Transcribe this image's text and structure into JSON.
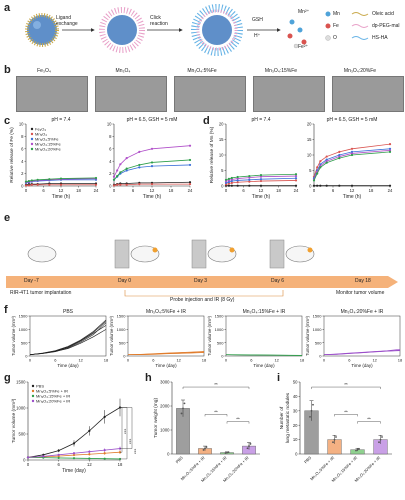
{
  "panels": {
    "a": {
      "letter": "a",
      "step1": "Ligand\nexchange",
      "step1_l1": "Ligand",
      "step1_l2": "exchange",
      "step2_l1": "Click",
      "step2_l2": "reaction",
      "step3_top": "GSH",
      "step3_bot": "H⁺",
      "ion_mn": "Mn²⁺",
      "ion_fe": "Fe²⁺",
      "legend": [
        {
          "symbol": "Mn",
          "desc": "Oleic acid"
        },
        {
          "symbol": "Fe",
          "desc": "dp-PEG-mal"
        },
        {
          "symbol": "O",
          "desc": "HS-HA"
        }
      ],
      "colors": {
        "mn": "#4fa3d9",
        "fe": "#d9534f",
        "o": "#dddddd",
        "oleic": "#c9a94a",
        "peg": "#e8a0c8",
        "ha": "#66b3e6"
      }
    },
    "b": {
      "letter": "b",
      "labels": [
        "Fe₃O₄",
        "Mn₃O₄",
        "Mn₃O₄:5%Fe",
        "Mn₃O₄:15%Fe",
        "Mn₃O₄:20%Fe"
      ]
    },
    "c": {
      "letter": "c",
      "left_title": "pH = 7.4",
      "right_title": "pH = 6.5, GSH = 5 mM",
      "ylabel": "Relative release of Fe (%)",
      "xlabel": "Time (h)",
      "legend": [
        "Fe₃O₄",
        "Mn₃O₄",
        "Mn₃O₄:5%Fe",
        "Mn₃O₄:15%Fe",
        "Mn₃O₄:20%Fe"
      ]
    },
    "d": {
      "letter": "d",
      "left_title": "pH = 7.4",
      "right_title": "pH = 6.5, GSH = 5 mM",
      "ylabel": "Relative release of Mn (%)",
      "xlabel": "Time (h)"
    },
    "e": {
      "letter": "e",
      "days": [
        "Day -7",
        "Day 0",
        "Day 3",
        "Day 6",
        "Day 18"
      ],
      "event1": "RIR-4T1 tumor implantation",
      "event2": "Probe injection and IR (8 Gy)",
      "event3": "Monitor tumor volume"
    },
    "f": {
      "letter": "f",
      "titles": [
        "PBS",
        "Mn₃O₄:5%Fe + IR",
        "Mn₃O₄:15%Fe + IR",
        "Mn₃O₄:20%Fe + IR"
      ],
      "ylabel": "Tumor volume (mm³)",
      "xlabel": "Time (day)"
    },
    "g": {
      "letter": "g",
      "ylabel": "Tumor volume (mm³)",
      "xlabel": "Time (day)",
      "legend": [
        "PBS",
        "Mn₃O₄:5%Fe + IR",
        "Mn₃O₄:15%Fe + IR",
        "Mn₃O₄:20%Fe + IR"
      ],
      "sig": "***"
    },
    "h": {
      "letter": "h",
      "ylabel": "Tumor weight (mg)",
      "sig": "**"
    },
    "i": {
      "letter": "i",
      "ylabel_l1": "Number of",
      "ylabel_l2": "lung metastatic nodules",
      "sig": "**"
    }
  },
  "chart_data": [
    {
      "id": "c-left",
      "type": "line",
      "title": "pH = 7.4",
      "xlabel": "Time (h)",
      "ylabel": "Relative release of Fe (%)",
      "x": [
        0,
        1,
        2,
        4,
        8,
        12,
        24
      ],
      "xlim": [
        0,
        24
      ],
      "ylim": [
        0,
        10
      ],
      "xticks": [
        0,
        6,
        12,
        18,
        24
      ],
      "yticks": [
        0,
        2,
        4,
        6,
        8,
        10
      ],
      "series": [
        {
          "name": "Fe₃O₄",
          "color": "#222222",
          "values": [
            0.2,
            0.3,
            0.3,
            0.3,
            0.4,
            0.4,
            0.4
          ]
        },
        {
          "name": "Mn₃O₄",
          "color": "#d9534f",
          "values": [
            0.1,
            0.1,
            0.2,
            0.2,
            0.2,
            0.2,
            0.2
          ]
        },
        {
          "name": "Mn₃O₄:5%Fe",
          "color": "#3a6fd8",
          "values": [
            0.5,
            0.6,
            0.7,
            0.8,
            0.9,
            1.0,
            1.0
          ]
        },
        {
          "name": "Mn₃O₄:15%Fe",
          "color": "#b04fc9",
          "values": [
            0.6,
            0.7,
            0.8,
            0.9,
            1.0,
            1.1,
            1.2
          ]
        },
        {
          "name": "Mn₃O₄:20%Fe",
          "color": "#2e9e4a",
          "values": [
            0.7,
            0.8,
            0.9,
            1.0,
            1.1,
            1.2,
            1.3
          ]
        }
      ]
    },
    {
      "id": "c-right",
      "type": "line",
      "title": "pH = 6.5, GSH = 5 mM",
      "xlabel": "Time (h)",
      "ylabel": "",
      "x": [
        0,
        1,
        2,
        4,
        8,
        12,
        24
      ],
      "xlim": [
        0,
        24
      ],
      "ylim": [
        0,
        10
      ],
      "xticks": [
        0,
        6,
        12,
        18,
        24
      ],
      "yticks": [
        0,
        2,
        4,
        6,
        8,
        10
      ],
      "series": [
        {
          "name": "Fe₃O₄",
          "color": "#222222",
          "values": [
            0.2,
            0.3,
            0.4,
            0.4,
            0.5,
            0.5,
            0.6
          ]
        },
        {
          "name": "Mn₃O₄",
          "color": "#d9534f",
          "values": [
            0.1,
            0.2,
            0.2,
            0.2,
            0.3,
            0.3,
            0.3
          ]
        },
        {
          "name": "Mn₃O₄:5%Fe",
          "color": "#3a6fd8",
          "values": [
            1.0,
            1.5,
            2.0,
            2.5,
            3.0,
            3.2,
            3.4
          ]
        },
        {
          "name": "Mn₃O₄:15%Fe",
          "color": "#b04fc9",
          "values": [
            1.5,
            2.5,
            3.5,
            4.5,
            5.5,
            6.0,
            6.5
          ]
        },
        {
          "name": "Mn₃O₄:20%Fe",
          "color": "#2e9e4a",
          "values": [
            1.0,
            1.6,
            2.2,
            2.8,
            3.4,
            3.8,
            4.2
          ]
        }
      ]
    },
    {
      "id": "d-left",
      "type": "line",
      "title": "pH = 7.4",
      "xlabel": "Time (h)",
      "ylabel": "Relative release of Mn (%)",
      "x": [
        0,
        1,
        2,
        4,
        8,
        12,
        24
      ],
      "xlim": [
        0,
        24
      ],
      "ylim": [
        0,
        20
      ],
      "xticks": [
        0,
        6,
        12,
        18,
        24
      ],
      "yticks": [
        0,
        5,
        10,
        15,
        20
      ],
      "series": [
        {
          "name": "Fe₃O₄",
          "color": "#222222",
          "values": [
            0.1,
            0.1,
            0.1,
            0.1,
            0.1,
            0.1,
            0.1
          ]
        },
        {
          "name": "Mn₃O₄",
          "color": "#d9534f",
          "values": [
            0.5,
            0.8,
            1.0,
            1.2,
            1.4,
            1.6,
            1.8
          ]
        },
        {
          "name": "Mn₃O₄:5%Fe",
          "color": "#3a6fd8",
          "values": [
            1.0,
            1.3,
            1.6,
            1.8,
            2.0,
            2.2,
            2.5
          ]
        },
        {
          "name": "Mn₃O₄:15%Fe",
          "color": "#b04fc9",
          "values": [
            1.5,
            1.8,
            2.1,
            2.4,
            2.7,
            3.0,
            3.2
          ]
        },
        {
          "name": "Mn₃O₄:20%Fe",
          "color": "#2e9e4a",
          "values": [
            2.0,
            2.3,
            2.6,
            2.9,
            3.2,
            3.5,
            3.8
          ]
        }
      ]
    },
    {
      "id": "d-right",
      "type": "line",
      "title": "pH = 6.5, GSH = 5 mM",
      "xlabel": "Time (h)",
      "ylabel": "",
      "x": [
        0,
        1,
        2,
        4,
        8,
        12,
        24
      ],
      "xlim": [
        0,
        24
      ],
      "ylim": [
        0,
        20
      ],
      "xticks": [
        0,
        6,
        12,
        18,
        24
      ],
      "yticks": [
        0,
        5,
        10,
        15,
        20
      ],
      "series": [
        {
          "name": "Fe₃O₄",
          "color": "#222222",
          "values": [
            0.1,
            0.1,
            0.1,
            0.1,
            0.1,
            0.1,
            0.1
          ]
        },
        {
          "name": "Mn₃O₄",
          "color": "#d9534f",
          "values": [
            3.0,
            6.0,
            8.0,
            9.5,
            11.0,
            12.0,
            13.5
          ]
        },
        {
          "name": "Mn₃O₄:5%Fe",
          "color": "#3a6fd8",
          "values": [
            2.5,
            5.0,
            7.0,
            8.5,
            10.0,
            11.0,
            12.0
          ]
        },
        {
          "name": "Mn₃O₄:15%Fe",
          "color": "#b04fc9",
          "values": [
            2.0,
            4.5,
            6.5,
            8.0,
            9.5,
            10.5,
            11.5
          ]
        },
        {
          "name": "Mn₃O₄:20%Fe",
          "color": "#2e9e4a",
          "values": [
            1.8,
            4.0,
            6.0,
            7.5,
            9.0,
            10.0,
            11.0
          ]
        }
      ]
    },
    {
      "id": "f-panels",
      "type": "line",
      "title": "Individual tumor growth curves",
      "xlabel": "Time (day)",
      "ylabel": "Tumor volume (mm³)",
      "x": [
        0,
        3,
        6,
        9,
        12,
        15,
        18
      ],
      "ylim": [
        0,
        1500
      ],
      "yticks": [
        0,
        500,
        1000,
        1500
      ],
      "groups": [
        {
          "name": "PBS",
          "color": "#222222",
          "mice": [
            [
              50,
              100,
              180,
              320,
              560,
              850,
              1150
            ],
            [
              50,
              90,
              160,
              300,
              520,
              800,
              1250
            ],
            [
              50,
              110,
              200,
              360,
              600,
              920,
              1350
            ],
            [
              50,
              95,
              170,
              280,
              480,
              720,
              1000
            ],
            [
              50,
              100,
              190,
              340,
              580,
              880,
              1300
            ]
          ]
        },
        {
          "name": "Mn₃O₄:5%Fe + IR",
          "color": "#e07b2a",
          "mice": [
            [
              50,
              60,
              80,
              100,
              120,
              140,
              160
            ],
            [
              50,
              55,
              70,
              90,
              100,
              120,
              140
            ],
            [
              50,
              65,
              85,
              110,
              130,
              150,
              170
            ],
            [
              50,
              50,
              60,
              80,
              95,
              110,
              130
            ]
          ]
        },
        {
          "name": "Mn₃O₄:15%Fe + IR",
          "color": "#2e9e4a",
          "mice": [
            [
              50,
              45,
              40,
              35,
              30,
              25,
              20
            ],
            [
              50,
              40,
              35,
              30,
              25,
              22,
              18
            ],
            [
              50,
              50,
              45,
              40,
              35,
              30,
              25
            ]
          ]
        },
        {
          "name": "Mn₃O₄:20%Fe + IR",
          "color": "#9b4fc9",
          "mice": [
            [
              50,
              70,
              100,
              130,
              160,
              190,
              220
            ],
            [
              50,
              60,
              90,
              120,
              150,
              180,
              200
            ],
            [
              50,
              80,
              110,
              140,
              170,
              200,
              250
            ],
            [
              50,
              65,
              95,
              125,
              155,
              185,
              210
            ]
          ]
        }
      ]
    },
    {
      "id": "g",
      "type": "line",
      "title": "",
      "xlabel": "Time (day)",
      "ylabel": "Tumor volume (mm³)",
      "x": [
        0,
        3,
        6,
        9,
        12,
        15,
        18
      ],
      "xlim": [
        0,
        18
      ],
      "ylim": [
        0,
        1500
      ],
      "xticks": [
        0,
        6,
        12,
        18
      ],
      "yticks": [
        0,
        500,
        1000,
        1500
      ],
      "series": [
        {
          "name": "PBS",
          "color": "#222222",
          "values": [
            50,
            100,
            180,
            320,
            560,
            830,
            1010
          ],
          "err": [
            10,
            20,
            30,
            60,
            90,
            130,
            170
          ]
        },
        {
          "name": "Mn₃O₄:5%Fe + IR",
          "color": "#e07b2a",
          "values": [
            50,
            60,
            75,
            95,
            110,
            130,
            150
          ],
          "err": [
            5,
            10,
            15,
            20,
            25,
            30,
            35
          ]
        },
        {
          "name": "Mn₃O₄:15%Fe + IR",
          "color": "#2e9e4a",
          "values": [
            50,
            45,
            40,
            35,
            30,
            25,
            20
          ],
          "err": [
            5,
            5,
            5,
            5,
            5,
            5,
            5
          ]
        },
        {
          "name": "Mn₃O₄:20%Fe + IR",
          "color": "#9b4fc9",
          "values": [
            50,
            70,
            100,
            130,
            160,
            190,
            220
          ],
          "err": [
            8,
            12,
            18,
            22,
            28,
            34,
            40
          ]
        }
      ]
    },
    {
      "id": "h",
      "type": "bar",
      "title": "",
      "xlabel": "",
      "ylabel": "Tumor weight (mg)",
      "categories": [
        "PBS",
        "Mn₃O₄:5%Fe + IR",
        "Mn₃O₄:15%Fe + IR",
        "Mn₃O₄:20%Fe + IR"
      ],
      "values": [
        1900,
        230,
        60,
        330
      ],
      "err": [
        350,
        100,
        30,
        150
      ],
      "colors": [
        "#9e9e9e",
        "#f4b183",
        "#8fd18f",
        "#c9a0e6"
      ],
      "ylim": [
        0,
        3000
      ],
      "yticks": [
        0,
        1000,
        2000,
        3000
      ]
    },
    {
      "id": "i",
      "type": "bar",
      "title": "",
      "xlabel": "",
      "ylabel": "Number of lung metastatic nodules",
      "categories": [
        "PBS",
        "Mn₃O₄:5%Fe + IR",
        "Mn₃O₄:15%Fe + IR",
        "Mn₃O₄:20%Fe + IR"
      ],
      "values": [
        30,
        10,
        3,
        10
      ],
      "err": [
        7,
        3,
        1,
        3
      ],
      "colors": [
        "#9e9e9e",
        "#f4b183",
        "#8fd18f",
        "#c9a0e6"
      ],
      "ylim": [
        0,
        50
      ],
      "yticks": [
        0,
        10,
        20,
        30,
        40,
        50
      ]
    }
  ]
}
